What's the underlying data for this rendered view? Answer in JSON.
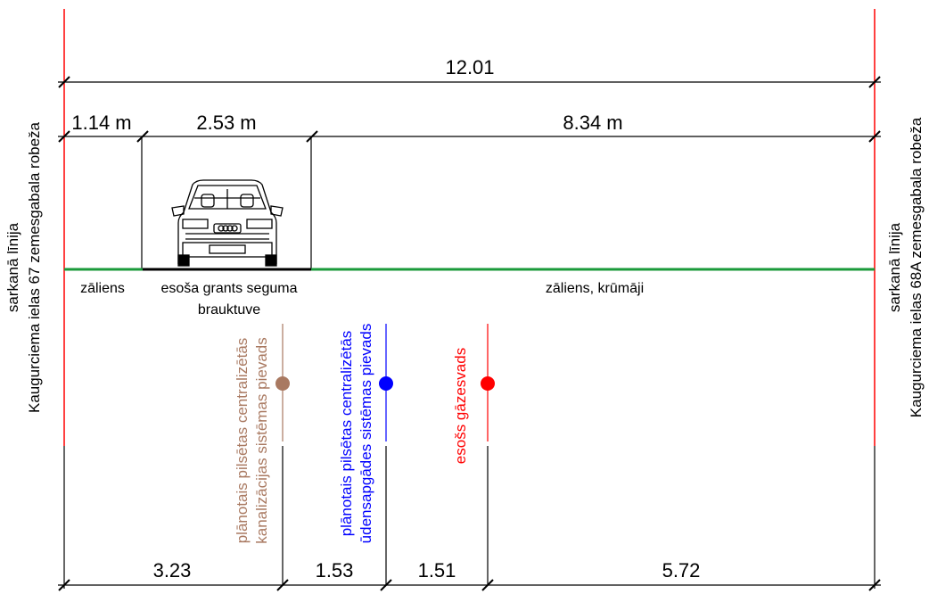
{
  "dimensions": {
    "total": "12.01",
    "top_segments": [
      "1.14 m",
      "2.53 m",
      "8.34 m"
    ],
    "bottom_segments": [
      "3.23",
      "1.53",
      "1.51",
      "5.72"
    ]
  },
  "surfaces": {
    "left": "zāliens",
    "road_line1": "esoša grants seguma",
    "road_line2": "brauktuve",
    "right": "zāliens, krūmāji"
  },
  "boundaries": {
    "left": {
      "line1": "sarkanā līnija",
      "line2": "Kaugurciema ielas 67 zemesgabala robeža"
    },
    "right": {
      "line1": "sarkanā līnija",
      "line2": "Kaugurciema ielas 68A zemesgabala robeža"
    }
  },
  "utilities": [
    {
      "line1": "plānotais   pilsētas   centralizētās",
      "line2": "kanalizācijas sistēmas pievads",
      "color": "#a97961"
    },
    {
      "line1": "plānotais   pilsētas   centralizētās",
      "line2": "ūdensapgādes sistēmas pievads",
      "color": "#0000ff"
    },
    {
      "line1": "esošs gāzesvads",
      "color": "#ff0000"
    }
  ],
  "colors": {
    "ground": "#1a9a3a",
    "red_line": "#ff0000",
    "sewer": "#a97961",
    "water": "#0000ff",
    "gas": "#ff0000"
  }
}
